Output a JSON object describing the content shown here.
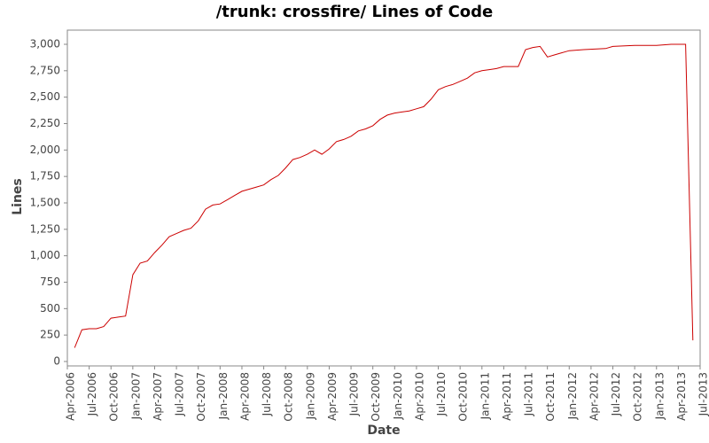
{
  "chart_data": {
    "type": "line",
    "title": "/trunk: crossfire/ Lines of Code",
    "x_label": "Date",
    "y_label": "Lines",
    "x": [
      "2006-05",
      "2006-06",
      "2006-07",
      "2006-08",
      "2006-09",
      "2006-10",
      "2006-11",
      "2006-12",
      "2007-01",
      "2007-02",
      "2007-03",
      "2007-04",
      "2007-05",
      "2007-06",
      "2007-07",
      "2007-08",
      "2007-09",
      "2007-10",
      "2007-11",
      "2007-12",
      "2008-01",
      "2008-02",
      "2008-03",
      "2008-04",
      "2008-05",
      "2008-06",
      "2008-07",
      "2008-08",
      "2008-09",
      "2008-10",
      "2008-11",
      "2008-12",
      "2009-01",
      "2009-02",
      "2009-03",
      "2009-04",
      "2009-05",
      "2009-06",
      "2009-07",
      "2009-08",
      "2009-09",
      "2009-10",
      "2009-11",
      "2009-12",
      "2010-01",
      "2010-02",
      "2010-03",
      "2010-04",
      "2010-05",
      "2010-06",
      "2010-07",
      "2010-08",
      "2010-09",
      "2010-10",
      "2010-11",
      "2010-12",
      "2011-01",
      "2011-02",
      "2011-03",
      "2011-04",
      "2011-05",
      "2011-06",
      "2011-07",
      "2011-08",
      "2011-09",
      "2011-10",
      "2011-11",
      "2011-12",
      "2012-01",
      "2012-03",
      "2012-06",
      "2012-07",
      "2012-10",
      "2013-01",
      "2013-03",
      "2013-05",
      "2013-06"
    ],
    "series": [
      {
        "name": "Lines",
        "color": "#cc0000",
        "values": [
          130,
          300,
          310,
          310,
          330,
          410,
          420,
          430,
          820,
          930,
          950,
          1030,
          1100,
          1180,
          1210,
          1240,
          1260,
          1330,
          1440,
          1480,
          1490,
          1530,
          1570,
          1610,
          1630,
          1650,
          1670,
          1720,
          1760,
          1830,
          1910,
          1930,
          1960,
          2000,
          1960,
          2010,
          2080,
          2100,
          2130,
          2180,
          2200,
          2230,
          2290,
          2330,
          2350,
          2360,
          2370,
          2390,
          2410,
          2480,
          2570,
          2600,
          2620,
          2650,
          2680,
          2730,
          2750,
          2760,
          2770,
          2790,
          2790,
          2790,
          2950,
          2970,
          2980,
          2880,
          2900,
          2920,
          2940,
          2950,
          2960,
          2980,
          2990,
          2990,
          3000,
          3000,
          200
        ]
      }
    ],
    "xlim": [
      "2006-04",
      "2013-07"
    ],
    "xticks": [
      {
        "value": "2006-04",
        "label": "Apr-2006"
      },
      {
        "value": "2006-07",
        "label": "Jul-2006"
      },
      {
        "value": "2006-10",
        "label": "Oct-2006"
      },
      {
        "value": "2007-01",
        "label": "Jan-2007"
      },
      {
        "value": "2007-04",
        "label": "Apr-2007"
      },
      {
        "value": "2007-07",
        "label": "Jul-2007"
      },
      {
        "value": "2007-10",
        "label": "Oct-2007"
      },
      {
        "value": "2008-01",
        "label": "Jan-2008"
      },
      {
        "value": "2008-04",
        "label": "Apr-2008"
      },
      {
        "value": "2008-07",
        "label": "Jul-2008"
      },
      {
        "value": "2008-10",
        "label": "Oct-2008"
      },
      {
        "value": "2009-01",
        "label": "Jan-2009"
      },
      {
        "value": "2009-04",
        "label": "Apr-2009"
      },
      {
        "value": "2009-07",
        "label": "Jul-2009"
      },
      {
        "value": "2009-10",
        "label": "Oct-2009"
      },
      {
        "value": "2010-01",
        "label": "Jan-2010"
      },
      {
        "value": "2010-04",
        "label": "Apr-2010"
      },
      {
        "value": "2010-07",
        "label": "Jul-2010"
      },
      {
        "value": "2010-10",
        "label": "Oct-2010"
      },
      {
        "value": "2011-01",
        "label": "Jan-2011"
      },
      {
        "value": "2011-04",
        "label": "Apr-2011"
      },
      {
        "value": "2011-07",
        "label": "Jul-2011"
      },
      {
        "value": "2011-10",
        "label": "Oct-2011"
      },
      {
        "value": "2012-01",
        "label": "Jan-2012"
      },
      {
        "value": "2012-04",
        "label": "Apr-2012"
      },
      {
        "value": "2012-07",
        "label": "Jul-2012"
      },
      {
        "value": "2012-10",
        "label": "Oct-2012"
      },
      {
        "value": "2013-01",
        "label": "Jan-2013"
      },
      {
        "value": "2013-04",
        "label": "Apr-2013"
      },
      {
        "value": "2013-07",
        "label": "Jul-2013"
      }
    ],
    "ylim": [
      -42,
      3134
    ],
    "yticks": [
      0,
      250,
      500,
      750,
      {
        "value": 1000,
        "label": "1,000"
      },
      {
        "value": 1250,
        "label": "1,250"
      },
      {
        "value": 1500,
        "label": "1,500"
      },
      {
        "value": 1750,
        "label": "1,750"
      },
      {
        "value": 2000,
        "label": "2,000"
      },
      {
        "value": 2250,
        "label": "2,250"
      },
      {
        "value": 2500,
        "label": "2,500"
      },
      {
        "value": 2750,
        "label": "2,750"
      },
      {
        "value": 3000,
        "label": "3,000"
      }
    ],
    "grid": false
  }
}
